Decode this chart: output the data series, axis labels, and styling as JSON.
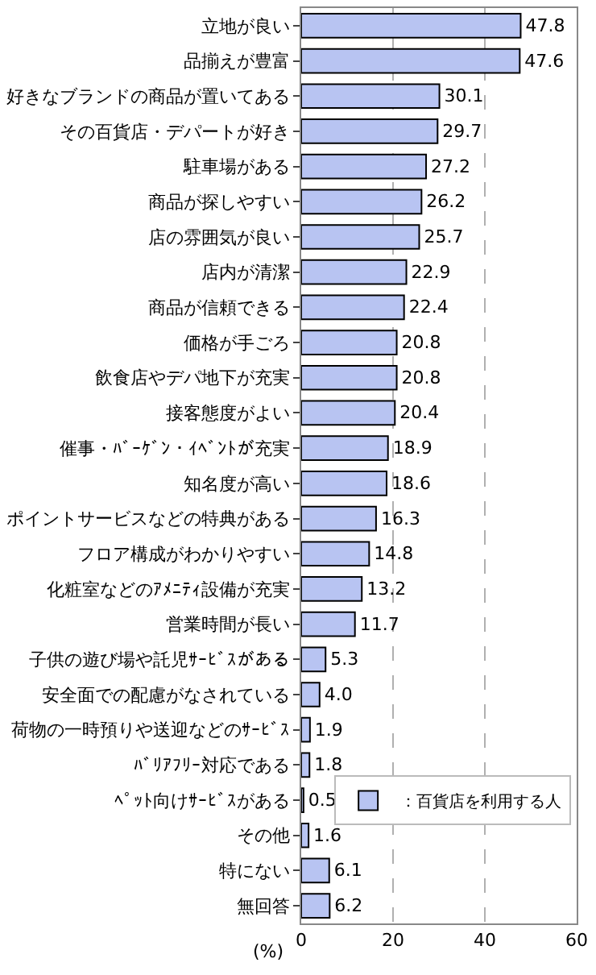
{
  "chart_data": {
    "type": "bar",
    "orientation": "horizontal",
    "xlabel": "(%)",
    "categories": [
      "立地が良い",
      "品揃えが豊富",
      "好きなブランドの商品が置いてある",
      "その百貨店・デパートが好き",
      "駐車場がある",
      "商品が探しやすい",
      "店の雰囲気が良い",
      "店内が清潔",
      "商品が信頼できる",
      "価格が手ごろ",
      "飲食店やデパ地下が充実",
      "接客態度がよい",
      "催事・ﾊﾞｰｹﾞﾝ・ｲﾍﾞﾝﾄが充実",
      "知名度が高い",
      "ポイントサービスなどの特典がある",
      "フロア構成がわかりやすい",
      "化粧室などのｱﾒﾆﾃｨ設備が充実",
      "営業時間が長い",
      "子供の遊び場や託児ｻｰﾋﾞｽがある",
      "安全面での配慮がなされている",
      "荷物の一時預りや送迎などのｻｰﾋﾞｽ",
      "ﾊﾞﾘｱﾌﾘｰ対応である",
      "ﾍﾟｯﾄ向けｻｰﾋﾞｽがある",
      "その他",
      "特にない",
      "無回答"
    ],
    "series": [
      {
        "name": "：百貨店を利用する人",
        "color": "#b8c4f2",
        "values": [
          47.8,
          47.6,
          30.1,
          29.7,
          27.2,
          26.2,
          25.7,
          22.9,
          22.4,
          20.8,
          20.8,
          20.4,
          18.9,
          18.6,
          16.3,
          14.8,
          13.2,
          11.7,
          5.3,
          4.0,
          1.9,
          1.8,
          0.5,
          1.6,
          6.1,
          6.2
        ]
      }
    ],
    "value_labels": [
      "47.8",
      "47.6",
      "30.1",
      "29.7",
      "27.2",
      "26.2",
      "25.7",
      "22.9",
      "22.4",
      "20.8",
      "20.8",
      "20.4",
      "18.9",
      "18.6",
      "16.3",
      "14.8",
      "13.2",
      "11.7",
      "5.3",
      "4.0",
      "1.9",
      "1.8",
      "0.5",
      "1.6",
      "6.1",
      "6.2"
    ],
    "xlim": [
      0,
      60
    ],
    "xticks": [
      0,
      20,
      40,
      60
    ],
    "grid": "x",
    "legend": "bottom right"
  }
}
